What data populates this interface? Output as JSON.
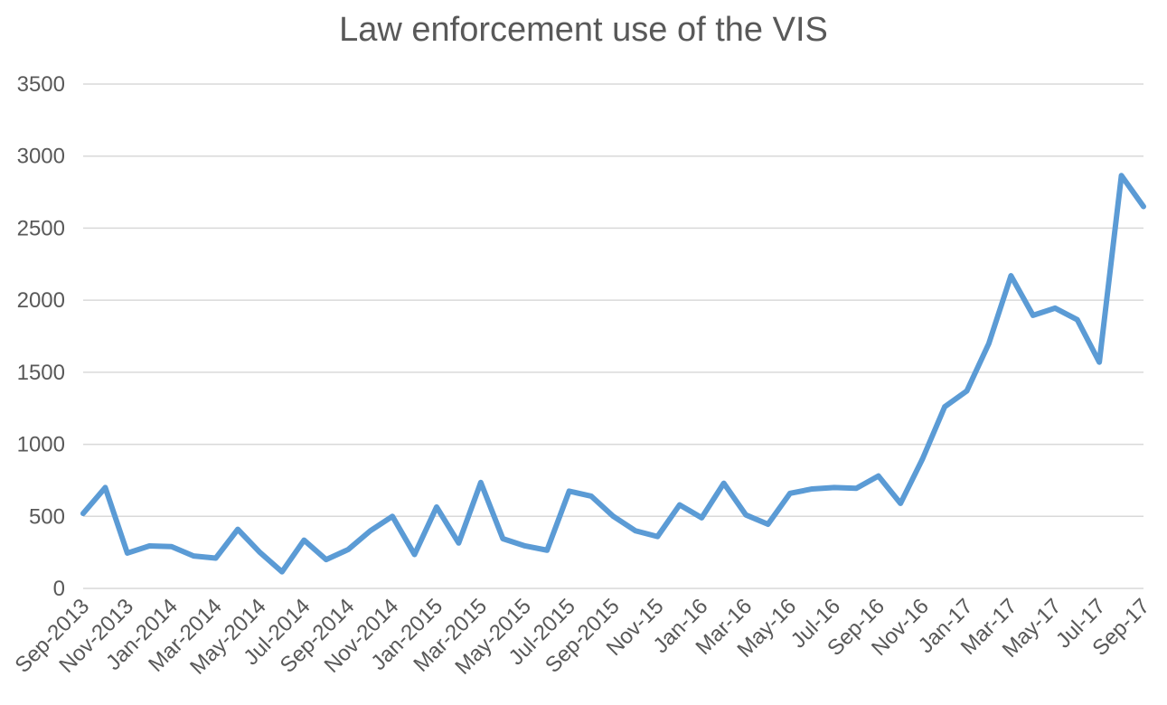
{
  "chart_data": {
    "type": "line",
    "title": "Law enforcement use of the VIS",
    "xlabel": "",
    "ylabel": "",
    "ylim": [
      0,
      3500
    ],
    "yticks": [
      0,
      500,
      1000,
      1500,
      2000,
      2500,
      3000,
      3500
    ],
    "grid": true,
    "legend": "none",
    "x": [
      "Sep-2013",
      "Oct-2013",
      "Nov-2013",
      "Dec-2013",
      "Jan-2014",
      "Feb-2014",
      "Mar-2014",
      "Apr-2014",
      "May-2014",
      "Jun-2014",
      "Jul-2014",
      "Aug-2014",
      "Sep-2014",
      "Oct-2014",
      "Nov-2014",
      "Dec-2014",
      "Jan-2015",
      "Feb-2015",
      "Mar-2015",
      "Apr-2015",
      "May-2015",
      "Jun-2015",
      "Jul-2015",
      "Aug-2015",
      "Sep-2015",
      "Oct-2015",
      "Nov-15",
      "Dec-15",
      "Jan-16",
      "Feb-16",
      "Mar-16",
      "Apr-16",
      "May-16",
      "Jun-16",
      "Jul-16",
      "Aug-16",
      "Sep-16",
      "Oct-16",
      "Nov-16",
      "Dec-16",
      "Jan-17",
      "Feb-17",
      "Mar-17",
      "Apr-17",
      "May-17",
      "Jun-17",
      "Jul-17",
      "Aug-17",
      "Sep-17"
    ],
    "x_tick_labels": [
      "Sep-2013",
      "Nov-2013",
      "Jan-2014",
      "Mar-2014",
      "May-2014",
      "Jul-2014",
      "Sep-2014",
      "Nov-2014",
      "Jan-2015",
      "Mar-2015",
      "May-2015",
      "Jul-2015",
      "Sep-2015",
      "Nov-15",
      "Jan-16",
      "Mar-16",
      "May-16",
      "Jul-16",
      "Sep-16",
      "Nov-16",
      "Jan-17",
      "Mar-17",
      "May-17",
      "Jul-17",
      "Sep-17"
    ],
    "series": [
      {
        "color": "#5b9bd5",
        "values": [
          520,
          700,
          245,
          295,
          290,
          225,
          210,
          410,
          250,
          115,
          335,
          200,
          270,
          400,
          500,
          235,
          565,
          315,
          735,
          345,
          295,
          265,
          675,
          640,
          500,
          400,
          360,
          580,
          490,
          730,
          510,
          445,
          660,
          690,
          700,
          695,
          780,
          590,
          900,
          1260,
          1370,
          1700,
          2170,
          1895,
          1945,
          1865,
          1570,
          2865,
          2650
        ]
      }
    ]
  }
}
